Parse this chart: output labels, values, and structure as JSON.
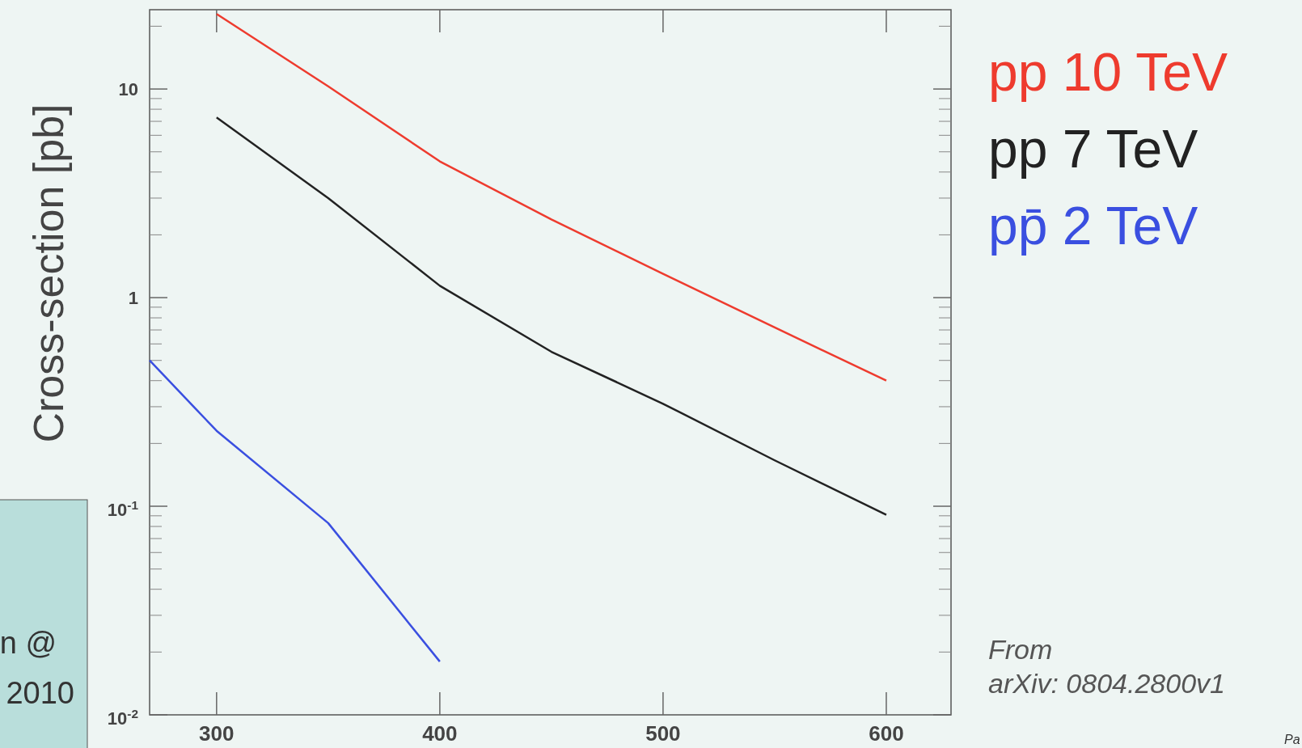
{
  "chart_data": {
    "type": "line",
    "ylabel": "Cross-section [pb]",
    "log": "y",
    "xlim": [
      270,
      629
    ],
    "xticks": [
      300,
      400,
      500,
      600
    ],
    "ylim": [
      0.01,
      24
    ],
    "yticks": [
      {
        "value": 0.01,
        "label": "10$^{-2}$"
      },
      {
        "value": 0.1,
        "label": "10$^{-1}$"
      },
      1,
      10
    ],
    "legend": "right",
    "series": [
      {
        "name": "pp 10 TeV",
        "color": "#ee3b2e",
        "x": [
          300,
          350,
          400,
          450,
          500,
          550,
          600
        ],
        "values": [
          22.9,
          10.3,
          4.5,
          2.37,
          1.3,
          0.72,
          0.4
        ]
      },
      {
        "name": "pp 7 TeV",
        "color": "#222222",
        "x": [
          300,
          350,
          400,
          450,
          500,
          550,
          600
        ],
        "values": [
          7.3,
          3.0,
          1.14,
          0.55,
          0.31,
          0.166,
          0.091
        ]
      },
      {
        "name": "pp̄ 2 TeV",
        "color": "#3a4fe0",
        "x": [
          270,
          300,
          350,
          400
        ],
        "values": [
          0.5,
          0.23,
          0.083,
          0.018
        ]
      }
    ],
    "annotations": [
      "From arXiv: 0804.2800v1",
      "n @",
      "2010",
      "Pa"
    ]
  }
}
